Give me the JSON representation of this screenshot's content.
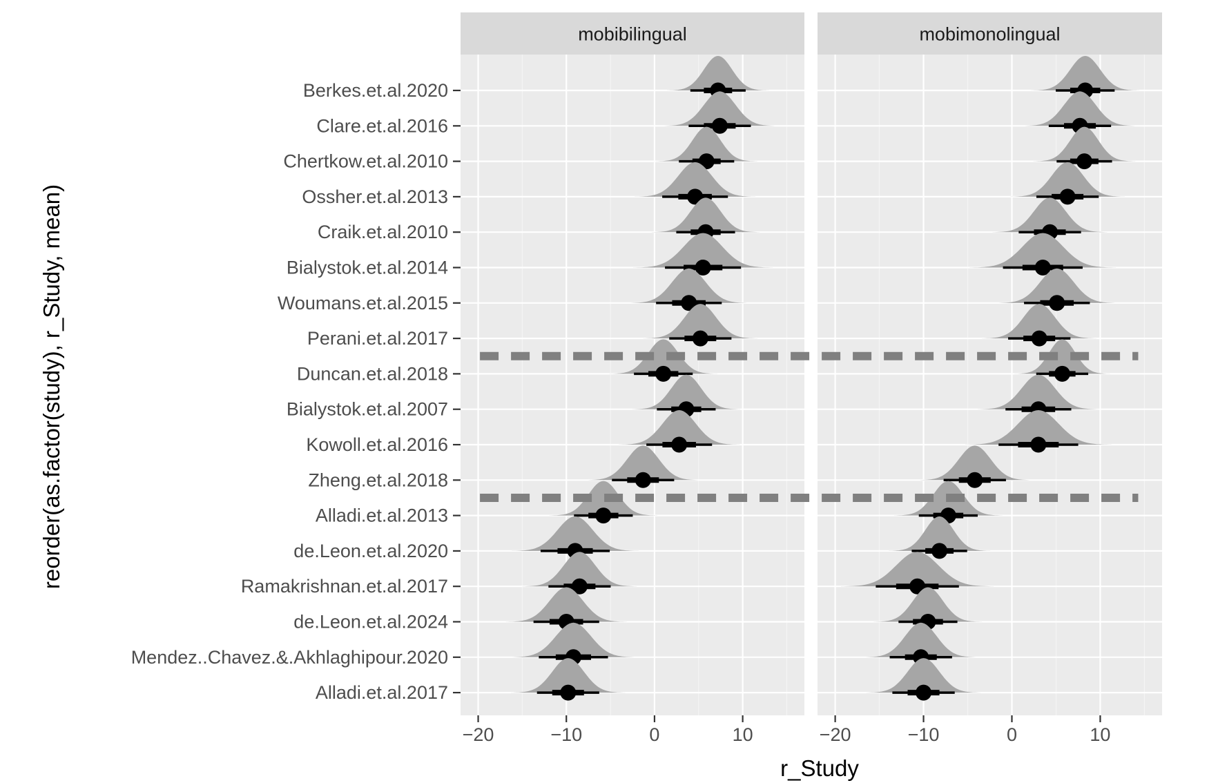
{
  "chart_data": {
    "type": "halfeye",
    "xlabel": "r_Study",
    "ylabel": "reorder(as.factor(study), r_Study, mean)",
    "xlim": [
      -22,
      17
    ],
    "xticks": [
      -20,
      -10,
      0,
      10
    ],
    "xtick_labels": [
      "−20",
      "−10",
      "0",
      "10"
    ],
    "grid": true,
    "studies": [
      "Berkes.et.al.2020",
      "Clare.et.al.2016",
      "Chertkow.et.al.2010",
      "Ossher.et.al.2013",
      "Craik.et.al.2010",
      "Bialystok.et.al.2014",
      "Woumans.et.al.2015",
      "Perani.et.al.2017",
      "Duncan.et.al.2018",
      "Bialystok.et.al.2007",
      "Kowoll.et.al.2016",
      "Zheng.et.al.2018",
      "Alladi.et.al.2013",
      "de.Leon.et.al.2020",
      "Ramakrishnan.et.al.2017",
      "de.Leon.et.al.2024",
      "Mendez..Chavez.&.Akhlaghipour.2020",
      "Alladi.et.al.2017"
    ],
    "panels": [
      {
        "name": "mobibilingual",
        "mean": [
          7.2,
          7.4,
          5.9,
          4.6,
          5.8,
          5.5,
          3.9,
          5.2,
          1.0,
          3.6,
          2.8,
          -1.3,
          -5.8,
          -9.0,
          -8.5,
          -10.0,
          -9.2,
          -9.8
        ],
        "sd": [
          1.6,
          1.8,
          1.6,
          1.9,
          1.7,
          2.2,
          1.9,
          1.8,
          1.7,
          1.7,
          1.9,
          1.8,
          1.7,
          2.0,
          1.8,
          1.9,
          2.0,
          1.8
        ]
      },
      {
        "name": "mobimonolingual",
        "mean": [
          8.3,
          7.7,
          8.2,
          6.3,
          4.3,
          3.5,
          5.1,
          3.1,
          5.7,
          3.0,
          3.0,
          -4.2,
          -7.2,
          -8.2,
          -10.7,
          -9.5,
          -10.3,
          -10.0
        ],
        "sd": [
          1.7,
          1.8,
          1.6,
          1.8,
          1.8,
          2.3,
          1.9,
          1.8,
          1.5,
          1.9,
          2.3,
          1.8,
          1.7,
          1.6,
          2.4,
          1.7,
          1.8,
          1.8
        ]
      }
    ],
    "reference_lines": [
      {
        "between": [
          "Perani.et.al.2017",
          "Duncan.et.al.2018"
        ],
        "style": "dashed",
        "color": "#808080"
      },
      {
        "between": [
          "Zheng.et.al.2018",
          "Alladi.et.al.2013"
        ],
        "style": "dashed",
        "color": "#808080"
      }
    ],
    "colors": {
      "panel_bg": "#ebebeb",
      "grid": "#ffffff",
      "strip_bg": "#d9d9d9",
      "density": "#a6a6a6",
      "point": "#000000",
      "tick_text": "#4d4d4d"
    }
  }
}
